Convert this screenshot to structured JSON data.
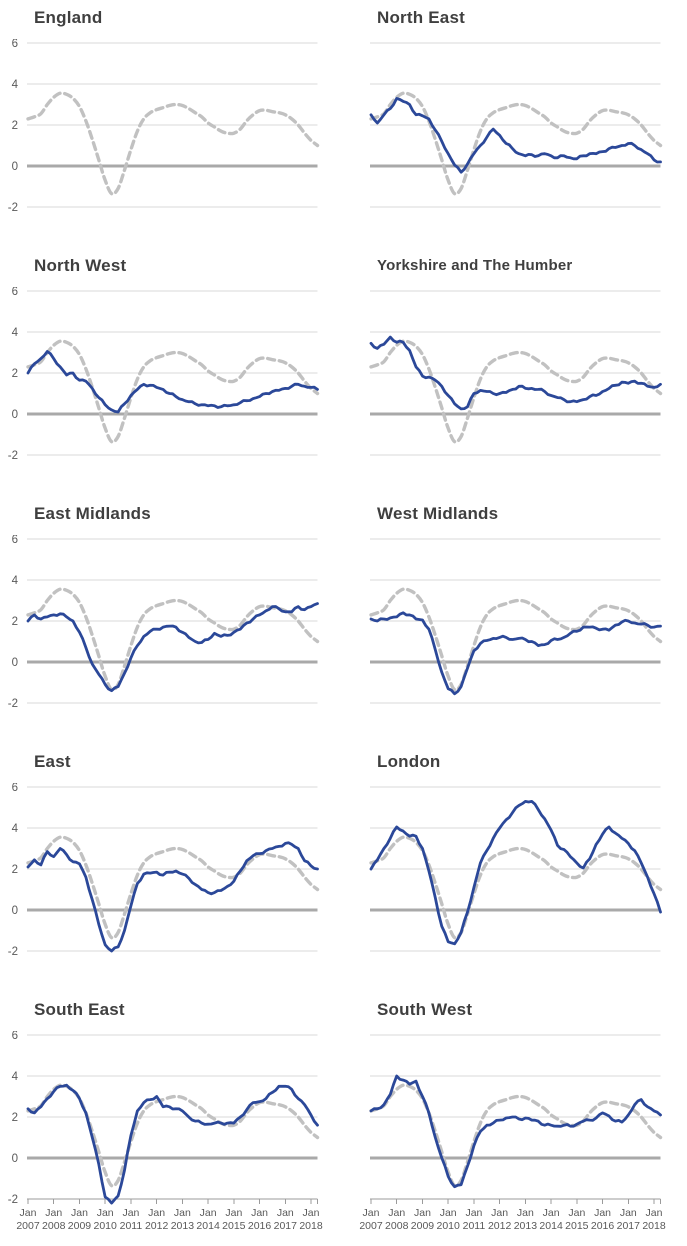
{
  "page": {
    "background": "#ffffff",
    "layout": "small-multiples grid, 2 columns x 5 rows"
  },
  "chart_data": {
    "type": "line",
    "x_unit": "time (monthly series, sampled quarterly here)",
    "x_domain": [
      2007.0,
      2018.25
    ],
    "x_step_years": 0.25,
    "ylim": [
      -2,
      6
    ],
    "grid": "horizontal gridlines only",
    "y_ticks": [
      {
        "label": "6",
        "value": 6
      },
      {
        "label": "4",
        "value": 4
      },
      {
        "label": "2",
        "value": 2
      },
      {
        "label": "0",
        "value": 0
      },
      {
        "label": "-2",
        "value": -2
      }
    ],
    "x_axis": {
      "month_label": "Jan",
      "years": [
        "2007",
        "2008",
        "2009",
        "2010",
        "2011",
        "2012",
        "2013",
        "2014",
        "2015",
        "2016",
        "2017",
        "2018"
      ],
      "shown_only_on_bottom_row": true
    },
    "colors": {
      "region_line": "#2b4899",
      "england_reference_line": "#c1c1c1",
      "gridline": "#d9d9d9",
      "zero_line": "#a9a9a9",
      "title_text": "#3f3f3f",
      "tick_text": "#595959"
    },
    "england_reference": {
      "name": "England",
      "style": "dashed gray, shown in every panel",
      "values": [
        2.3,
        2.4,
        2.55,
        3.0,
        3.35,
        3.55,
        3.5,
        3.3,
        2.9,
        2.2,
        1.3,
        0.3,
        -0.7,
        -1.35,
        -1.1,
        -0.2,
        0.8,
        1.7,
        2.3,
        2.6,
        2.75,
        2.85,
        2.95,
        3.0,
        2.95,
        2.8,
        2.6,
        2.4,
        2.1,
        1.9,
        1.7,
        1.6,
        1.6,
        1.8,
        2.2,
        2.5,
        2.7,
        2.72,
        2.65,
        2.6,
        2.5,
        2.3,
        2.0,
        1.6,
        1.25,
        1.0
      ]
    },
    "panels": [
      {
        "title": "England",
        "values": null
      },
      {
        "title": "North East",
        "values": [
          2.5,
          2.1,
          2.5,
          2.8,
          3.3,
          3.15,
          3.0,
          2.5,
          2.45,
          2.3,
          1.75,
          1.2,
          0.6,
          0.05,
          -0.3,
          0.1,
          0.6,
          1.0,
          1.4,
          1.8,
          1.5,
          1.1,
          0.85,
          0.6,
          0.5,
          0.55,
          0.5,
          0.6,
          0.5,
          0.4,
          0.5,
          0.4,
          0.35,
          0.5,
          0.6,
          0.6,
          0.7,
          0.85,
          0.9,
          1.0,
          1.1,
          1.0,
          0.8,
          0.6,
          0.3,
          0.2
        ]
      },
      {
        "title": "North West",
        "values": [
          2.0,
          2.45,
          2.7,
          3.05,
          2.7,
          2.3,
          1.9,
          2.0,
          1.65,
          1.6,
          1.25,
          0.8,
          0.45,
          0.2,
          0.1,
          0.5,
          0.9,
          1.2,
          1.45,
          1.4,
          1.3,
          1.2,
          1.0,
          0.85,
          0.7,
          0.6,
          0.5,
          0.45,
          0.4,
          0.4,
          0.35,
          0.4,
          0.45,
          0.55,
          0.65,
          0.75,
          0.85,
          1.0,
          1.1,
          1.15,
          1.25,
          1.35,
          1.45,
          1.35,
          1.3,
          1.2
        ]
      },
      {
        "title": "Yorkshire and The Humber",
        "values": [
          3.45,
          3.2,
          3.4,
          3.75,
          3.5,
          3.5,
          3.1,
          2.3,
          1.85,
          1.8,
          1.65,
          1.35,
          0.9,
          0.5,
          0.25,
          0.35,
          1.0,
          1.15,
          1.1,
          1.0,
          1.0,
          1.05,
          1.2,
          1.35,
          1.25,
          1.25,
          1.2,
          1.1,
          0.9,
          0.8,
          0.7,
          0.6,
          0.6,
          0.7,
          0.85,
          0.9,
          1.1,
          1.25,
          1.4,
          1.55,
          1.5,
          1.6,
          1.5,
          1.35,
          1.3,
          1.45
        ]
      },
      {
        "title": "East Midlands",
        "values": [
          2.0,
          2.3,
          2.1,
          2.2,
          2.3,
          2.35,
          2.2,
          2.0,
          1.45,
          0.7,
          -0.1,
          -0.6,
          -1.1,
          -1.4,
          -1.2,
          -0.55,
          0.2,
          0.8,
          1.25,
          1.5,
          1.6,
          1.7,
          1.75,
          1.7,
          1.45,
          1.2,
          1.0,
          0.95,
          1.1,
          1.4,
          1.25,
          1.3,
          1.45,
          1.6,
          1.9,
          2.1,
          2.3,
          2.5,
          2.7,
          2.6,
          2.45,
          2.45,
          2.7,
          2.55,
          2.7,
          2.85
        ]
      },
      {
        "title": "West Midlands",
        "values": [
          2.1,
          2.0,
          2.1,
          2.15,
          2.2,
          2.4,
          2.3,
          2.1,
          2.05,
          1.6,
          0.6,
          -0.5,
          -1.3,
          -1.55,
          -1.2,
          -0.3,
          0.55,
          0.9,
          1.05,
          1.15,
          1.2,
          1.2,
          1.1,
          1.15,
          1.1,
          1.0,
          0.8,
          0.85,
          1.05,
          1.1,
          1.2,
          1.4,
          1.5,
          1.7,
          1.7,
          1.65,
          1.6,
          1.55,
          1.8,
          1.95,
          2.0,
          1.9,
          1.85,
          1.8,
          1.7,
          1.75
        ]
      },
      {
        "title": "East",
        "values": [
          2.1,
          2.45,
          2.2,
          2.85,
          2.6,
          3.0,
          2.7,
          2.35,
          2.25,
          1.6,
          0.5,
          -0.7,
          -1.7,
          -2.0,
          -1.8,
          -1.0,
          0.2,
          1.3,
          1.75,
          1.8,
          1.85,
          1.7,
          1.85,
          1.9,
          1.75,
          1.55,
          1.25,
          1.0,
          0.85,
          0.85,
          0.95,
          1.15,
          1.4,
          1.9,
          2.4,
          2.65,
          2.75,
          2.9,
          3.0,
          3.1,
          3.25,
          3.2,
          3.0,
          2.4,
          2.15,
          2.0
        ]
      },
      {
        "title": "London",
        "values": [
          2.0,
          2.45,
          3.0,
          3.5,
          4.05,
          3.85,
          3.6,
          3.6,
          3.0,
          1.9,
          0.6,
          -0.8,
          -1.55,
          -1.65,
          -1.1,
          -0.1,
          1.1,
          2.3,
          2.9,
          3.5,
          4.0,
          4.4,
          4.75,
          5.1,
          5.3,
          5.3,
          4.9,
          4.45,
          3.9,
          3.15,
          2.95,
          2.6,
          2.3,
          2.05,
          2.5,
          3.2,
          3.7,
          4.05,
          3.75,
          3.5,
          3.25,
          2.9,
          2.3,
          1.6,
          0.8,
          -0.1
        ]
      },
      {
        "title": "South East",
        "values": [
          2.4,
          2.2,
          2.5,
          2.9,
          3.25,
          3.5,
          3.55,
          3.3,
          2.9,
          2.2,
          1.0,
          -0.3,
          -1.9,
          -2.2,
          -1.85,
          -0.6,
          1.1,
          2.3,
          2.7,
          2.85,
          3.0,
          2.5,
          2.5,
          2.4,
          2.3,
          2.0,
          1.8,
          1.7,
          1.65,
          1.7,
          1.7,
          1.7,
          1.7,
          2.0,
          2.35,
          2.7,
          2.75,
          2.9,
          3.2,
          3.5,
          3.5,
          3.35,
          2.9,
          2.6,
          2.1,
          1.6
        ]
      },
      {
        "title": "South West",
        "values": [
          2.3,
          2.4,
          2.6,
          3.1,
          4.0,
          3.8,
          3.6,
          3.75,
          3.0,
          2.2,
          1.0,
          0.0,
          -0.9,
          -1.4,
          -1.3,
          -0.4,
          0.6,
          1.3,
          1.6,
          1.7,
          1.85,
          1.95,
          2.0,
          1.9,
          1.95,
          1.85,
          1.8,
          1.6,
          1.6,
          1.55,
          1.6,
          1.55,
          1.65,
          1.8,
          1.85,
          1.95,
          2.2,
          2.05,
          1.8,
          1.75,
          2.1,
          2.6,
          2.85,
          2.5,
          2.3,
          2.1
        ]
      }
    ]
  }
}
